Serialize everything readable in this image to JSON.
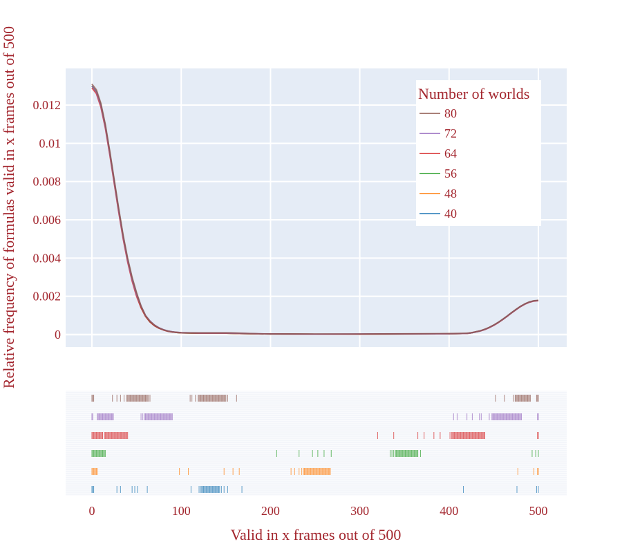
{
  "chart_data": {
    "type": "line",
    "subtype": "kde-with-rug",
    "xlabel": "Valid in x frames out of 500",
    "ylabel": "Relative frequency of formulas valid in x frames out of 500",
    "xlim": [
      -30,
      530
    ],
    "ylim": [
      -0.0007,
      0.0139
    ],
    "x_ticks": [
      0,
      100,
      200,
      300,
      400,
      500
    ],
    "x_tick_labels": [
      "0",
      "100",
      "200",
      "300",
      "400",
      "500"
    ],
    "y_ticks": [
      0,
      0.002,
      0.004,
      0.006,
      0.008,
      0.01,
      0.012
    ],
    "y_tick_labels": [
      "0",
      "0.002",
      "0.004",
      "0.006",
      "0.008",
      "0.01",
      "0.012"
    ],
    "grid": true,
    "legend": {
      "title": "Number of worlds",
      "placement": "top-right",
      "entries": [
        "80",
        "72",
        "64",
        "56",
        "48",
        "40"
      ]
    },
    "colors": {
      "80": "#8c564b",
      "72": "#9467bd",
      "64": "#d62728",
      "56": "#2ca02c",
      "48": "#ff7f0e",
      "40": "#1f77b4"
    },
    "x": [
      0,
      5,
      10,
      15,
      20,
      25,
      30,
      35,
      40,
      45,
      50,
      55,
      60,
      65,
      70,
      75,
      80,
      85,
      90,
      95,
      100,
      110,
      120,
      130,
      140,
      150,
      160,
      180,
      200,
      250,
      300,
      350,
      400,
      410,
      420,
      425,
      430,
      435,
      440,
      445,
      450,
      455,
      460,
      465,
      470,
      475,
      480,
      485,
      490,
      495,
      500
    ],
    "series": [
      {
        "name": "80",
        "values": [
          0.0131,
          0.0128,
          0.0121,
          0.011,
          0.0096,
          0.0081,
          0.0066,
          0.0052,
          0.004,
          0.003,
          0.0022,
          0.0015,
          0.001,
          0.0007,
          0.0005,
          0.00035,
          0.00025,
          0.00018,
          0.00014,
          0.00012,
          0.0001,
          9e-05,
          9e-05,
          9e-05,
          9e-05,
          9e-05,
          8e-05,
          5e-05,
          3e-05,
          3e-05,
          3e-05,
          4e-05,
          5e-05,
          6e-05,
          7e-05,
          0.0001,
          0.00015,
          0.0002,
          0.00028,
          0.00038,
          0.0005,
          0.00064,
          0.0008,
          0.00097,
          0.00115,
          0.00132,
          0.00148,
          0.00161,
          0.00171,
          0.00177,
          0.00179
        ]
      },
      {
        "name": "72",
        "values": [
          0.013,
          0.0127,
          0.012,
          0.0109,
          0.0095,
          0.008,
          0.0065,
          0.0051,
          0.0039,
          0.0029,
          0.0021,
          0.0015,
          0.001,
          0.00072,
          0.0005,
          0.00036,
          0.00026,
          0.00019,
          0.00015,
          0.00012,
          0.0001,
          9e-05,
          8e-05,
          8e-05,
          8e-05,
          8e-05,
          7e-05,
          5e-05,
          3e-05,
          2e-05,
          3e-05,
          3e-05,
          4e-05,
          5e-05,
          6e-05,
          9e-05,
          0.00014,
          0.00019,
          0.00027,
          0.00037,
          0.00049,
          0.00063,
          0.00079,
          0.00096,
          0.00114,
          0.00131,
          0.00147,
          0.0016,
          0.0017,
          0.00176,
          0.00178
        ]
      },
      {
        "name": "64",
        "values": [
          0.0129,
          0.0126,
          0.0119,
          0.0108,
          0.0094,
          0.0079,
          0.0064,
          0.005,
          0.0038,
          0.0028,
          0.002,
          0.0014,
          0.00095,
          0.00066,
          0.00046,
          0.00033,
          0.00024,
          0.00017,
          0.00013,
          0.00011,
          9e-05,
          8e-05,
          7e-05,
          7e-05,
          7e-05,
          7e-05,
          6e-05,
          4e-05,
          3e-05,
          2e-05,
          2e-05,
          3e-05,
          4e-05,
          5e-05,
          6e-05,
          9e-05,
          0.00014,
          0.00019,
          0.00026,
          0.00036,
          0.00048,
          0.00062,
          0.00078,
          0.00095,
          0.00113,
          0.0013,
          0.00146,
          0.00159,
          0.00169,
          0.00175,
          0.00177
        ]
      },
      {
        "name": "56",
        "values": [
          0.013,
          0.0127,
          0.012,
          0.0109,
          0.0095,
          0.008,
          0.0065,
          0.0051,
          0.0039,
          0.0029,
          0.0021,
          0.00145,
          0.00097,
          0.00067,
          0.00047,
          0.00034,
          0.00025,
          0.00018,
          0.00014,
          0.00011,
          9e-05,
          8e-05,
          7e-05,
          7e-05,
          7e-05,
          7e-05,
          6e-05,
          4e-05,
          3e-05,
          2e-05,
          2e-05,
          3e-05,
          4e-05,
          5e-05,
          6e-05,
          9e-05,
          0.00014,
          0.00019,
          0.00027,
          0.00037,
          0.00049,
          0.00063,
          0.00079,
          0.00096,
          0.00114,
          0.00131,
          0.00147,
          0.0016,
          0.0017,
          0.00176,
          0.00178
        ]
      },
      {
        "name": "48",
        "values": [
          0.013,
          0.0127,
          0.012,
          0.0109,
          0.0095,
          0.008,
          0.0065,
          0.0051,
          0.0039,
          0.0029,
          0.0021,
          0.00145,
          0.00097,
          0.00067,
          0.00047,
          0.00034,
          0.00025,
          0.00018,
          0.00014,
          0.00011,
          9e-05,
          8e-05,
          7e-05,
          7e-05,
          7e-05,
          7e-05,
          6e-05,
          4e-05,
          3e-05,
          2e-05,
          2e-05,
          3e-05,
          4e-05,
          5e-05,
          6e-05,
          9e-05,
          0.00014,
          0.00019,
          0.00027,
          0.00037,
          0.00049,
          0.00063,
          0.00079,
          0.00096,
          0.00114,
          0.00131,
          0.00147,
          0.0016,
          0.0017,
          0.00176,
          0.00178
        ]
      },
      {
        "name": "40",
        "values": [
          0.013,
          0.0127,
          0.012,
          0.0109,
          0.0095,
          0.008,
          0.0065,
          0.0051,
          0.0039,
          0.0029,
          0.0021,
          0.00145,
          0.00097,
          0.00067,
          0.00047,
          0.00034,
          0.00025,
          0.00018,
          0.00014,
          0.00011,
          9e-05,
          8e-05,
          7e-05,
          7e-05,
          7e-05,
          7e-05,
          6e-05,
          4e-05,
          3e-05,
          2e-05,
          2e-05,
          3e-05,
          4e-05,
          5e-05,
          6e-05,
          9e-05,
          0.00014,
          0.00019,
          0.00027,
          0.00037,
          0.00049,
          0.00063,
          0.00079,
          0.00096,
          0.00114,
          0.00131,
          0.00147,
          0.0016,
          0.0017,
          0.00176,
          0.00178
        ]
      }
    ],
    "rug": [
      {
        "name": "80",
        "values": [
          0,
          1,
          2,
          23,
          28,
          32,
          36,
          39,
          40,
          41,
          42,
          43,
          44,
          45,
          46,
          47,
          48,
          49,
          50,
          51,
          52,
          53,
          54,
          55,
          56,
          57,
          58,
          59,
          60,
          61,
          62,
          63,
          65,
          110,
          112,
          116,
          119,
          120,
          121,
          122,
          123,
          124,
          125,
          126,
          127,
          128,
          129,
          130,
          131,
          132,
          133,
          134,
          135,
          136,
          137,
          138,
          139,
          140,
          141,
          142,
          143,
          144,
          145,
          146,
          147,
          148,
          149,
          150,
          152,
          162,
          452,
          462,
          472,
          474,
          475,
          476,
          477,
          478,
          479,
          480,
          481,
          482,
          483,
          484,
          485,
          486,
          487,
          488,
          489,
          490,
          491,
          498,
          499,
          500
        ]
      },
      {
        "name": "72",
        "values": [
          0,
          1,
          6,
          7,
          8,
          9,
          10,
          11,
          12,
          13,
          14,
          15,
          16,
          17,
          18,
          19,
          20,
          21,
          22,
          23,
          24,
          55,
          57,
          59,
          60,
          61,
          62,
          63,
          64,
          65,
          66,
          67,
          68,
          69,
          70,
          71,
          72,
          73,
          74,
          75,
          76,
          77,
          78,
          79,
          80,
          81,
          82,
          83,
          84,
          85,
          86,
          87,
          88,
          89,
          90,
          405,
          409,
          420,
          426,
          434,
          436,
          445,
          448,
          449,
          450,
          451,
          452,
          453,
          454,
          455,
          456,
          457,
          458,
          459,
          460,
          461,
          462,
          463,
          464,
          465,
          466,
          467,
          468,
          469,
          470,
          471,
          472,
          473,
          474,
          475,
          476,
          477,
          478,
          479,
          480,
          481,
          499,
          500
        ]
      },
      {
        "name": "64",
        "values": [
          0,
          1,
          2,
          3,
          4,
          5,
          6,
          7,
          8,
          9,
          10,
          11,
          12,
          14,
          15,
          16,
          17,
          18,
          19,
          20,
          21,
          22,
          23,
          24,
          25,
          26,
          27,
          28,
          29,
          30,
          31,
          32,
          33,
          34,
          35,
          36,
          37,
          38,
          39,
          40,
          320,
          338,
          365,
          372,
          383,
          390,
          401,
          403,
          404,
          405,
          406,
          407,
          408,
          409,
          410,
          411,
          412,
          413,
          414,
          415,
          416,
          417,
          418,
          419,
          420,
          421,
          422,
          423,
          424,
          425,
          426,
          427,
          428,
          429,
          430,
          431,
          432,
          433,
          434,
          435,
          436,
          437,
          438,
          439,
          440,
          499,
          500
        ]
      },
      {
        "name": "56",
        "values": [
          0,
          1,
          2,
          3,
          4,
          5,
          6,
          7,
          8,
          9,
          10,
          11,
          12,
          13,
          14,
          15,
          207,
          232,
          247,
          253,
          260,
          268,
          334,
          336,
          338,
          340,
          341,
          342,
          343,
          344,
          345,
          346,
          347,
          348,
          349,
          350,
          351,
          352,
          353,
          354,
          355,
          356,
          357,
          358,
          359,
          360,
          361,
          362,
          363,
          364,
          365,
          368,
          493,
          497,
          500
        ]
      },
      {
        "name": "48",
        "values": [
          0,
          1,
          2,
          3,
          4,
          5,
          6,
          98,
          108,
          148,
          158,
          165,
          223,
          227,
          232,
          235,
          237,
          238,
          239,
          240,
          241,
          242,
          243,
          244,
          245,
          246,
          247,
          248,
          249,
          250,
          251,
          252,
          253,
          254,
          255,
          256,
          257,
          258,
          259,
          260,
          261,
          262,
          263,
          264,
          265,
          266,
          267,
          477,
          495,
          499,
          500
        ]
      },
      {
        "name": "40",
        "values": [
          0,
          1,
          2,
          28,
          32,
          45,
          48,
          51,
          62,
          111,
          120,
          122,
          123,
          124,
          125,
          126,
          127,
          128,
          129,
          130,
          131,
          132,
          133,
          134,
          135,
          136,
          137,
          138,
          139,
          140,
          141,
          142,
          143,
          145,
          148,
          152,
          168,
          416,
          476,
          498,
          500
        ]
      }
    ]
  }
}
